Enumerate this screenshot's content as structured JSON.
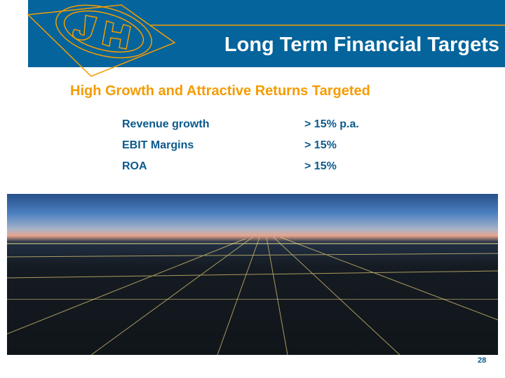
{
  "header": {
    "title": "Long Term Financial Targets",
    "logo_text": "JH",
    "colors": {
      "banner": "#05649b",
      "accent": "#f59c00"
    }
  },
  "subtitle": "High Growth and Attractive Returns Targeted",
  "targets": [
    {
      "label": "Revenue growth",
      "value": "> 15% p.a."
    },
    {
      "label": "EBIT Margins",
      "value": "> 15%"
    },
    {
      "label": "ROA",
      "value": "> 15%"
    }
  ],
  "image": {
    "subject": "city-lights-aerial-photo"
  },
  "page_number": "28"
}
